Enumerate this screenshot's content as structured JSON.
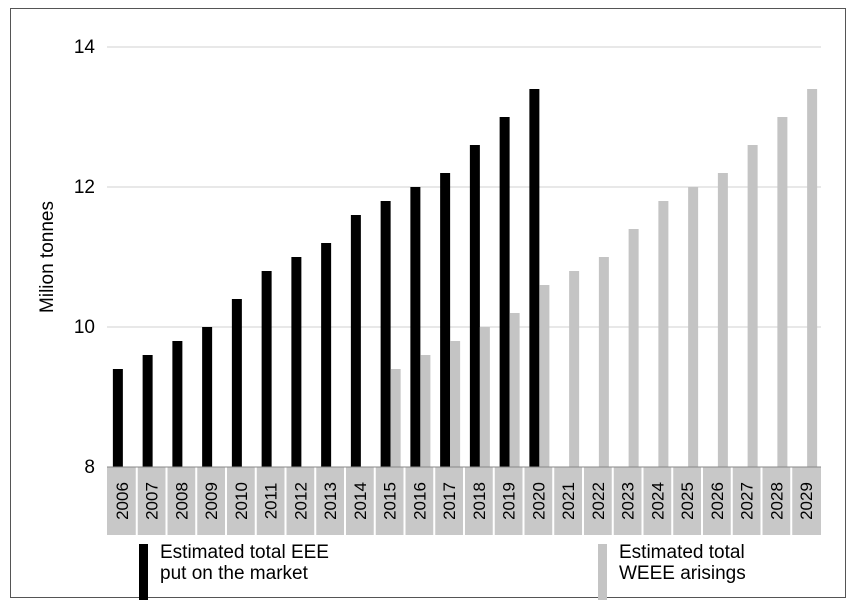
{
  "chart_data": {
    "type": "bar",
    "ylabel": "Milion tonnes",
    "xlabel": "",
    "ylim": [
      8,
      14
    ],
    "yticks": [
      8,
      10,
      12,
      14
    ],
    "grid": true,
    "categories": [
      "2006",
      "2007",
      "2008",
      "2009",
      "2010",
      "2011",
      "2012",
      "2013",
      "2014",
      "2015",
      "2016",
      "2017",
      "2018",
      "2019",
      "2020",
      "2021",
      "2022",
      "2023",
      "2024",
      "2025",
      "2026",
      "2027",
      "2028",
      "2029"
    ],
    "series": [
      {
        "name": "Estimated total EEE put on the market",
        "color": "#000000",
        "values": [
          9.4,
          9.6,
          9.8,
          10.0,
          10.4,
          10.8,
          11.0,
          11.2,
          11.6,
          11.8,
          12.0,
          12.2,
          12.6,
          13.0,
          13.4,
          null,
          null,
          null,
          null,
          null,
          null,
          null,
          null,
          null
        ]
      },
      {
        "name": "Estimated total WEEE arisings",
        "color": "#c4c4c4",
        "values": [
          null,
          null,
          null,
          null,
          null,
          null,
          null,
          null,
          null,
          9.4,
          9.6,
          9.8,
          10.0,
          10.2,
          10.6,
          10.8,
          11.0,
          11.4,
          11.8,
          12.0,
          12.2,
          12.6,
          13.0,
          13.4
        ]
      }
    ],
    "legend": [
      {
        "label": "Estimated total EEE\nput on the market",
        "color": "#000000"
      },
      {
        "label": "Estimated total\nWEEE arisings",
        "color": "#c4c4c4"
      }
    ]
  }
}
